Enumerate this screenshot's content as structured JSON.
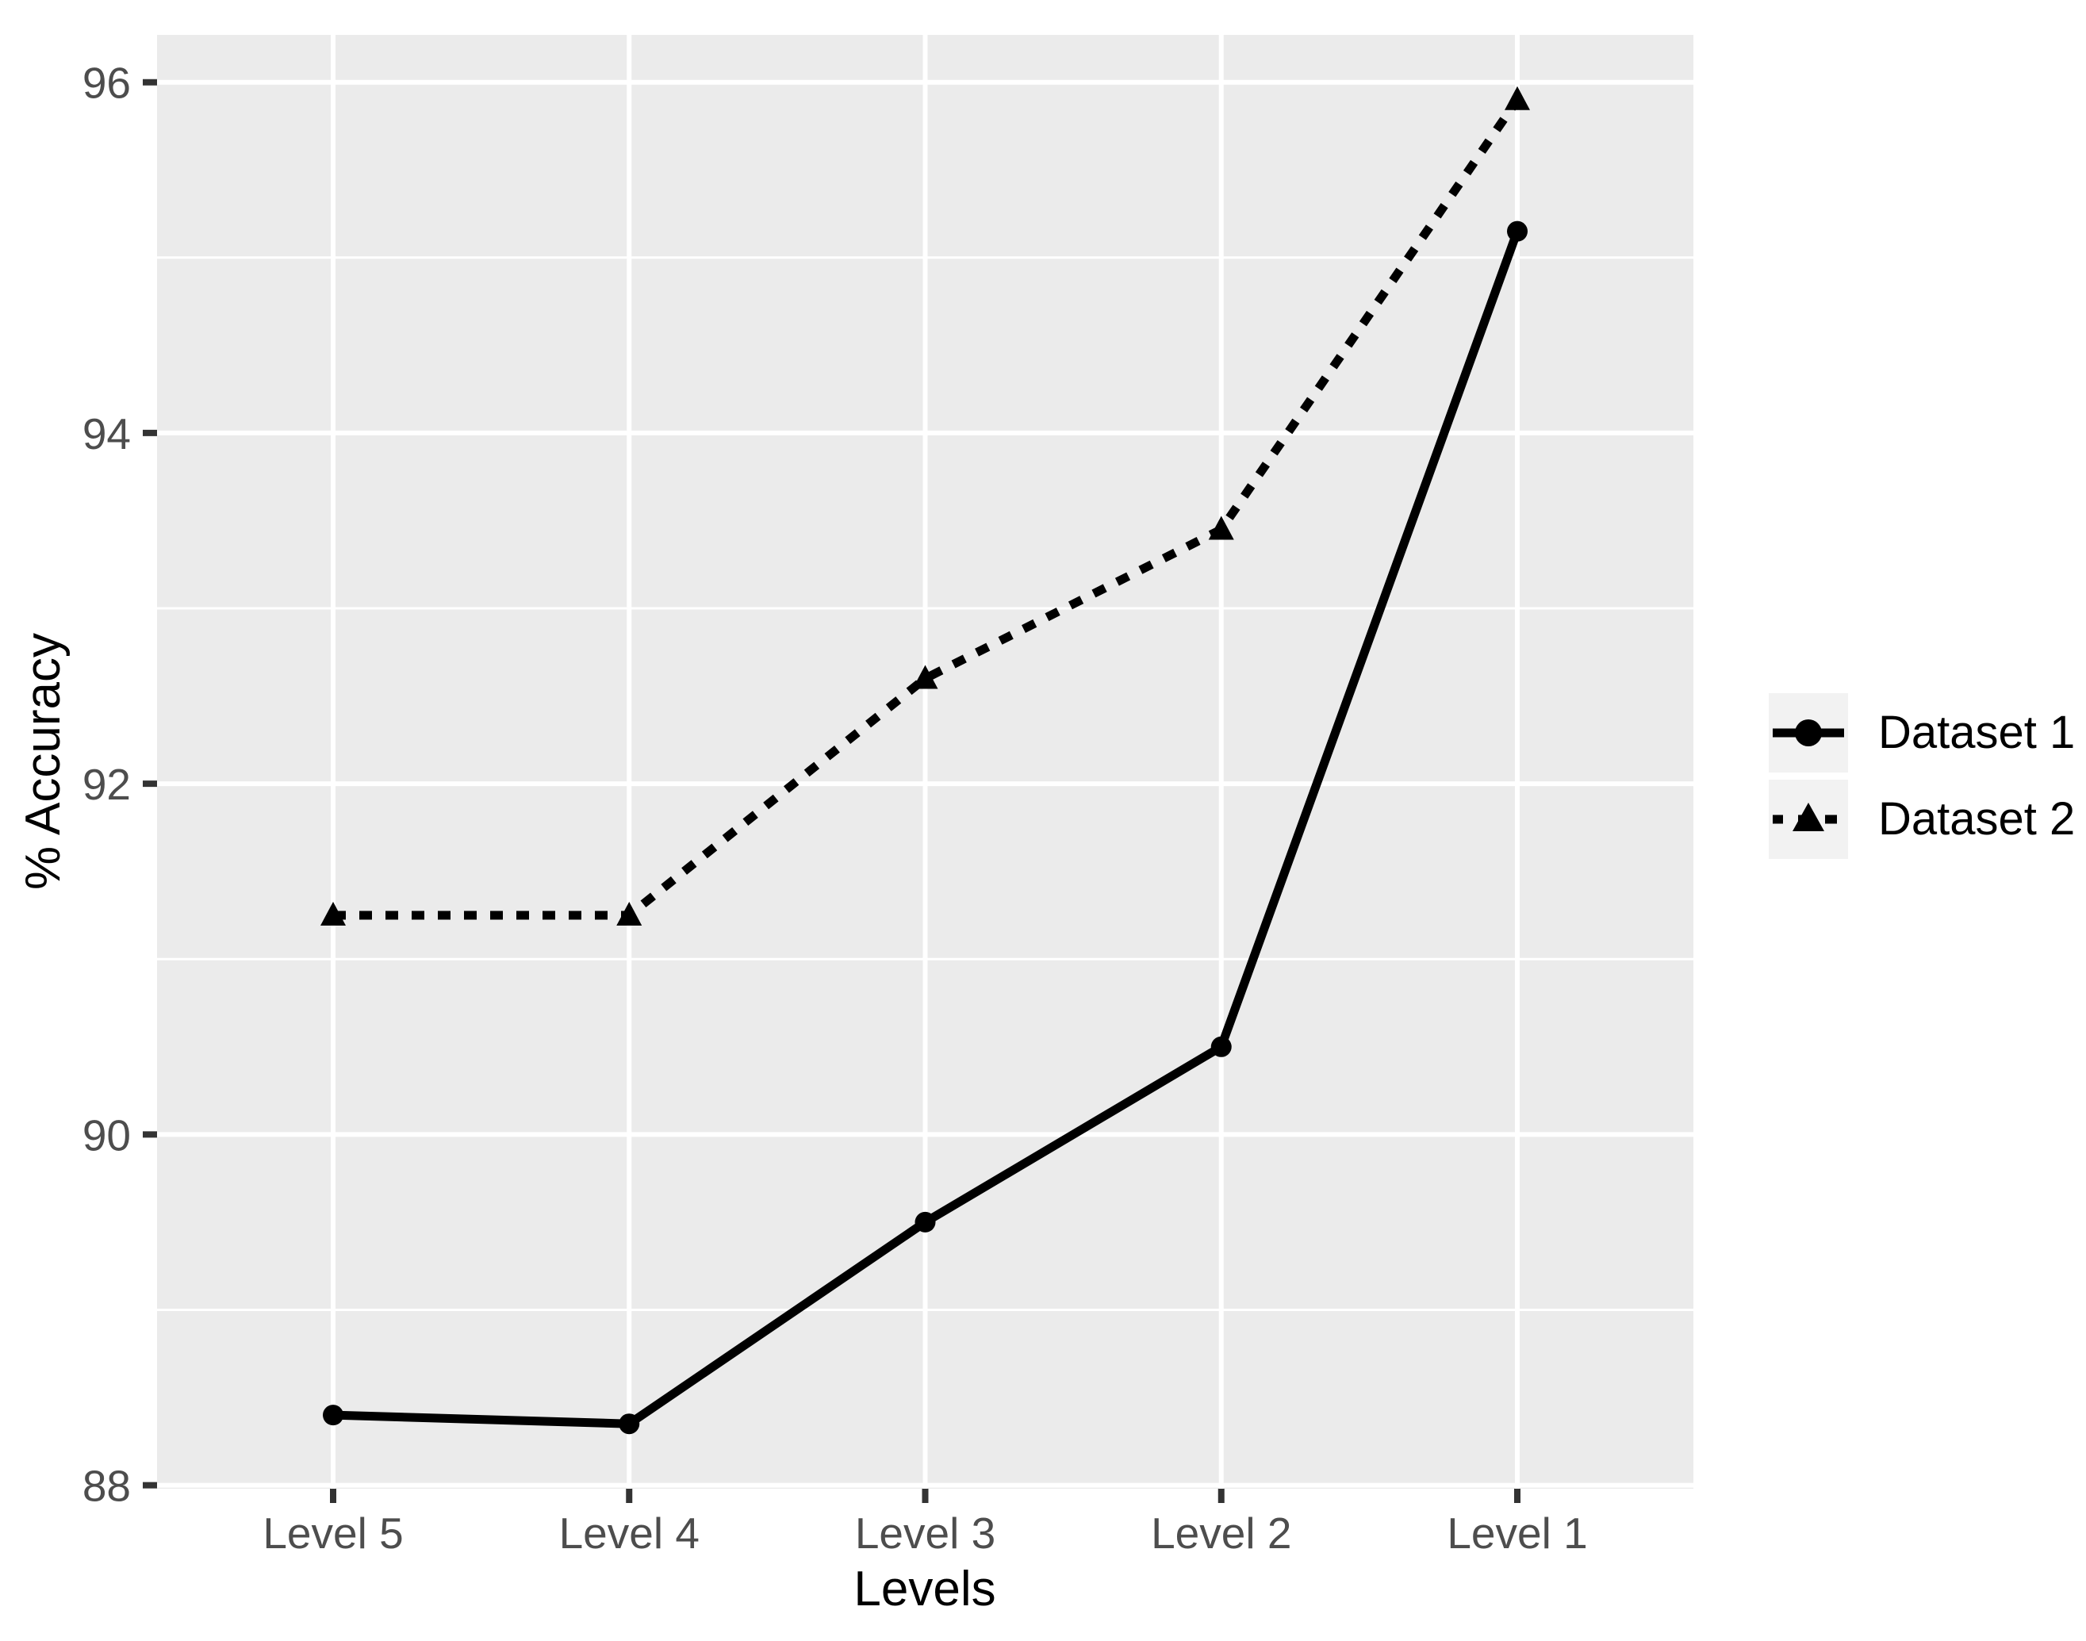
{
  "chart_data": {
    "type": "line",
    "title": "",
    "xlabel": "Levels",
    "ylabel": "% Accuracy",
    "categories": [
      "Level 5",
      "Level 4",
      "Level 3",
      "Level 2",
      "Level 1"
    ],
    "series": [
      {
        "name": "Dataset 1",
        "line_style": "solid",
        "marker": "circle",
        "color": "#000000",
        "values": [
          88.4,
          88.35,
          89.5,
          90.5,
          95.15
        ]
      },
      {
        "name": "Dataset 2",
        "line_style": "dashed",
        "marker": "triangle",
        "color": "#000000",
        "values": [
          91.25,
          91.25,
          92.6,
          93.45,
          95.9
        ]
      }
    ],
    "y_ticks": [
      88,
      90,
      92,
      94,
      96
    ],
    "y_tick_labels": [
      "88",
      "90",
      "92",
      "94",
      "96"
    ],
    "y_minor_ticks": [
      89,
      91,
      93,
      95
    ],
    "ylim": [
      87.98,
      96.27
    ],
    "grid": "on",
    "legend_position": "right",
    "colors": {
      "page_background": "#FFFFFF",
      "panel_background": "#EBEBEB",
      "gridline": "#FFFFFF",
      "tick_mark": "#333333",
      "tick_label": "#4D4D4D",
      "axis_title": "#000000",
      "legend_key_background": "#F2F2F2"
    }
  }
}
